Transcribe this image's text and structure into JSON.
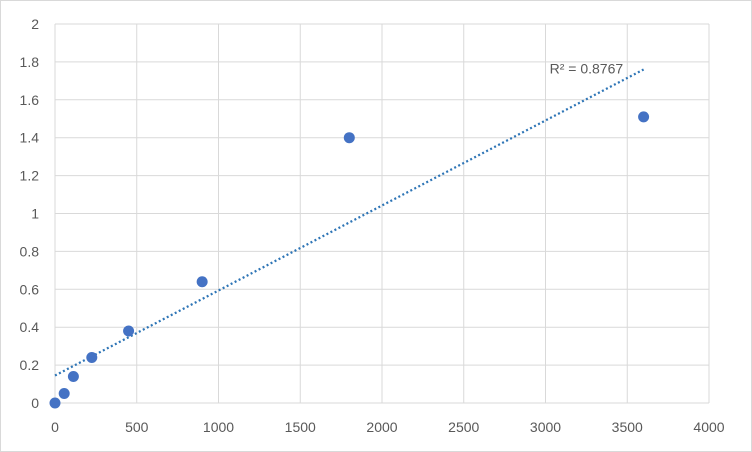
{
  "chart_data": {
    "type": "scatter",
    "title": "",
    "xlabel": "",
    "ylabel": "",
    "xlim": [
      0,
      4000
    ],
    "ylim": [
      0,
      2
    ],
    "x_ticks": [
      0,
      500,
      1000,
      1500,
      2000,
      2500,
      3000,
      3500,
      4000
    ],
    "y_ticks": [
      0,
      0.2,
      0.4,
      0.6,
      0.8,
      1,
      1.2,
      1.4,
      1.6,
      1.8,
      2
    ],
    "x_tick_labels": [
      "0",
      "500",
      "1000",
      "1500",
      "2000",
      "2500",
      "3000",
      "3500",
      "4000"
    ],
    "y_tick_labels": [
      "0",
      "0.2",
      "0.4",
      "0.6",
      "0.8",
      "1",
      "1.2",
      "1.4",
      "1.6",
      "1.8",
      "2"
    ],
    "grid": true,
    "legend": "none",
    "series": [
      {
        "x": [
          0,
          56.25,
          112.5,
          225,
          450,
          900,
          1800,
          3600
        ],
        "y": [
          0.0,
          0.05,
          0.14,
          0.24,
          0.38,
          0.64,
          1.4,
          1.51
        ],
        "color": "#4472c4",
        "marker": "circle"
      }
    ],
    "trendline": {
      "type": "linear",
      "x_range": [
        0,
        3600
      ],
      "y_start": 0.145,
      "y_end": 1.76,
      "color": "#2e75b6",
      "style": "dotted"
    },
    "annotations": [
      {
        "text": "R² = 0.8767"
      }
    ]
  }
}
